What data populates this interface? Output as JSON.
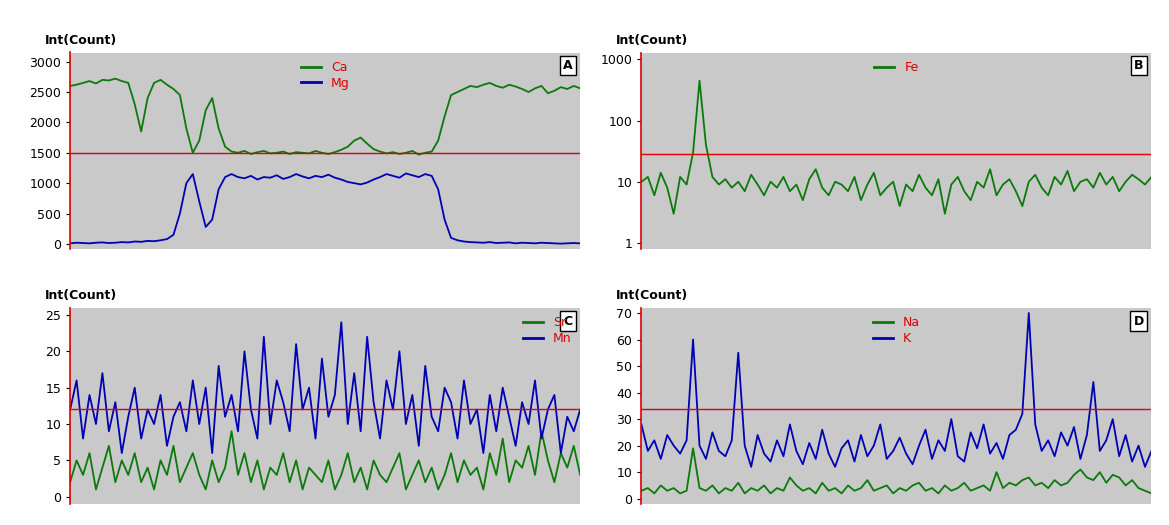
{
  "chart_data": [
    {
      "type": "line",
      "panel": "A",
      "y_label": "Int(Count)",
      "ylim": [
        -80,
        3150
      ],
      "yticks": [
        0,
        500,
        1000,
        1500,
        2000,
        2500,
        3000
      ],
      "tick_labels": "y",
      "legend": "upper center",
      "hlines": [
        1500
      ],
      "series": [
        {
          "name": "Ca",
          "color": "#0a7a0a",
          "values": [
            2600,
            2620,
            2650,
            2680,
            2640,
            2700,
            2690,
            2720,
            2680,
            2650,
            2300,
            1850,
            2400,
            2650,
            2700,
            2620,
            2550,
            2450,
            1900,
            1500,
            1700,
            2200,
            2400,
            1900,
            1600,
            1520,
            1500,
            1530,
            1480,
            1510,
            1530,
            1490,
            1500,
            1520,
            1480,
            1510,
            1500,
            1490,
            1530,
            1500,
            1480,
            1510,
            1550,
            1600,
            1700,
            1750,
            1650,
            1560,
            1520,
            1490,
            1510,
            1480,
            1500,
            1530,
            1470,
            1500,
            1520,
            1700,
            2100,
            2450,
            2500,
            2550,
            2600,
            2580,
            2620,
            2650,
            2600,
            2570,
            2620,
            2590,
            2550,
            2500,
            2560,
            2600,
            2480,
            2520,
            2580,
            2550,
            2600,
            2560
          ]
        },
        {
          "name": "Mg",
          "color": "#0000b4",
          "values": [
            10,
            20,
            15,
            10,
            20,
            25,
            15,
            20,
            30,
            25,
            40,
            35,
            50,
            45,
            60,
            80,
            150,
            500,
            1000,
            1150,
            700,
            280,
            400,
            900,
            1100,
            1150,
            1100,
            1080,
            1120,
            1060,
            1100,
            1090,
            1130,
            1070,
            1100,
            1150,
            1110,
            1080,
            1120,
            1100,
            1140,
            1090,
            1060,
            1020,
            1000,
            980,
            1010,
            1060,
            1100,
            1150,
            1120,
            1090,
            1160,
            1130,
            1100,
            1150,
            1120,
            900,
            400,
            100,
            60,
            40,
            30,
            25,
            20,
            30,
            15,
            20,
            25,
            10,
            20,
            15,
            10,
            20,
            15,
            10,
            5,
            10,
            15,
            10
          ]
        }
      ]
    },
    {
      "type": "line",
      "panel": "B",
      "y_label": "Int(Count)",
      "log": "y",
      "ylim": [
        0.8,
        1300
      ],
      "yticks": [
        1,
        10,
        100,
        1000
      ],
      "tick_labels": "y",
      "legend": "upper center",
      "hlines": [
        28
      ],
      "series": [
        {
          "name": "Fe",
          "color": "#0a7a0a",
          "values": [
            10,
            12,
            6,
            14,
            8,
            3,
            12,
            9,
            30,
            450,
            40,
            12,
            9,
            11,
            8,
            10,
            7,
            13,
            9,
            6,
            10,
            8,
            12,
            7,
            9,
            5,
            11,
            16,
            8,
            6,
            10,
            9,
            7,
            12,
            5,
            9,
            14,
            6,
            8,
            10,
            4,
            9,
            7,
            13,
            8,
            6,
            11,
            3,
            9,
            12,
            7,
            5,
            10,
            8,
            16,
            6,
            9,
            11,
            7,
            4,
            10,
            13,
            8,
            6,
            12,
            9,
            15,
            7,
            10,
            11,
            8,
            14,
            9,
            12,
            7,
            10,
            13,
            11,
            9,
            12
          ]
        }
      ]
    },
    {
      "type": "line",
      "panel": "C",
      "y_label": "Int(Count)",
      "ylim": [
        -1,
        26
      ],
      "yticks": [
        0,
        5,
        10,
        15,
        20,
        25
      ],
      "tick_labels": "y",
      "legend": "upper right",
      "hlines": [
        12
      ],
      "series": [
        {
          "name": "Sr",
          "color": "#0a7a0a",
          "values": [
            2,
            5,
            3,
            6,
            1,
            4,
            7,
            2,
            5,
            3,
            6,
            2,
            4,
            1,
            5,
            3,
            7,
            2,
            4,
            6,
            3,
            1,
            5,
            2,
            4,
            9,
            3,
            6,
            2,
            5,
            1,
            4,
            3,
            6,
            2,
            5,
            1,
            4,
            3,
            2,
            5,
            1,
            3,
            6,
            2,
            4,
            1,
            5,
            3,
            2,
            4,
            6,
            1,
            3,
            5,
            2,
            4,
            1,
            3,
            6,
            2,
            5,
            3,
            4,
            1,
            6,
            3,
            8,
            2,
            5,
            4,
            7,
            3,
            9,
            5,
            2,
            6,
            4,
            7,
            3
          ]
        },
        {
          "name": "Mn",
          "color": "#0000b4",
          "values": [
            12,
            16,
            8,
            14,
            10,
            17,
            9,
            13,
            6,
            11,
            15,
            8,
            12,
            10,
            14,
            7,
            11,
            13,
            9,
            16,
            10,
            15,
            6,
            18,
            11,
            14,
            9,
            20,
            12,
            8,
            22,
            10,
            16,
            13,
            9,
            21,
            12,
            15,
            8,
            19,
            11,
            14,
            24,
            10,
            17,
            9,
            22,
            13,
            8,
            16,
            12,
            20,
            10,
            14,
            7,
            18,
            11,
            9,
            15,
            13,
            8,
            16,
            10,
            12,
            6,
            14,
            9,
            15,
            11,
            7,
            13,
            10,
            16,
            8,
            12,
            14,
            6,
            11,
            9,
            12
          ]
        }
      ]
    },
    {
      "type": "line",
      "panel": "D",
      "y_label": "Int(Count)",
      "ylim": [
        -2,
        72
      ],
      "yticks": [
        0,
        10,
        20,
        30,
        40,
        50,
        60,
        70
      ],
      "tick_labels": "y",
      "legend": "upper center",
      "hlines": [
        34
      ],
      "series": [
        {
          "name": "Na",
          "color": "#0a7a0a",
          "values": [
            3,
            4,
            2,
            5,
            3,
            4,
            2,
            3,
            19,
            4,
            3,
            5,
            2,
            4,
            3,
            6,
            2,
            4,
            3,
            5,
            2,
            4,
            3,
            8,
            5,
            3,
            4,
            2,
            6,
            3,
            4,
            2,
            5,
            3,
            4,
            7,
            3,
            4,
            5,
            2,
            4,
            3,
            5,
            6,
            3,
            4,
            2,
            5,
            3,
            4,
            6,
            3,
            4,
            5,
            3,
            10,
            4,
            6,
            5,
            7,
            8,
            5,
            6,
            4,
            7,
            5,
            6,
            9,
            11,
            8,
            7,
            10,
            6,
            9,
            8,
            5,
            7,
            4,
            3,
            2
          ]
        },
        {
          "name": "K",
          "color": "#0000b4",
          "values": [
            28,
            18,
            22,
            15,
            24,
            20,
            17,
            22,
            60,
            20,
            15,
            25,
            18,
            16,
            22,
            55,
            20,
            12,
            24,
            17,
            14,
            22,
            16,
            28,
            18,
            13,
            21,
            15,
            26,
            17,
            12,
            19,
            22,
            14,
            24,
            16,
            20,
            28,
            15,
            18,
            23,
            17,
            13,
            20,
            26,
            15,
            22,
            18,
            30,
            16,
            14,
            25,
            19,
            28,
            17,
            21,
            15,
            24,
            26,
            32,
            70,
            28,
            18,
            22,
            16,
            25,
            20,
            27,
            15,
            24,
            44,
            18,
            22,
            30,
            16,
            24,
            14,
            20,
            12,
            18
          ]
        }
      ]
    }
  ]
}
